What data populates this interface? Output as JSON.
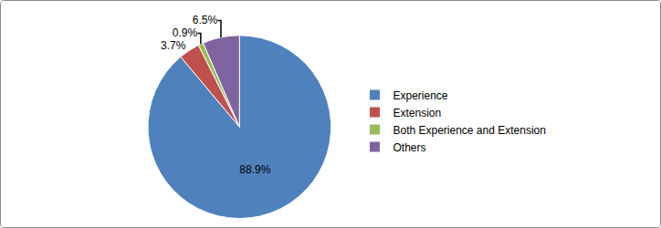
{
  "chart_data": {
    "type": "pie",
    "categories": [
      "Experience",
      "Extension",
      "Both Experience and Extension",
      "Others"
    ],
    "values": [
      88.9,
      3.7,
      0.9,
      6.5
    ],
    "value_labels": [
      "88.9%",
      "3.7%",
      "0.9%",
      "6.5%"
    ],
    "colors": [
      "#4f81bd",
      "#c0504d",
      "#9bbb59",
      "#8064a2"
    ],
    "data_labels": true,
    "legend": "right"
  }
}
